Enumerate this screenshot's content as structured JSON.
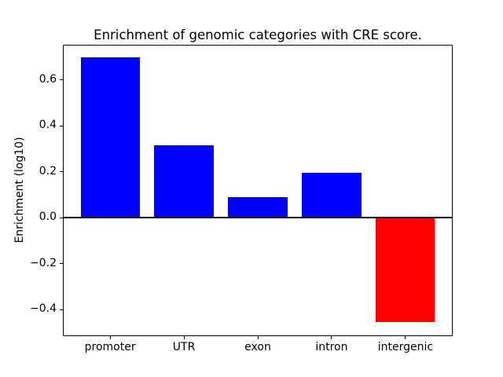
{
  "chart_data": {
    "type": "bar",
    "title": "Enrichment of genomic categories with CRE score.",
    "xlabel": "",
    "ylabel": "Enrichment (log10)",
    "categories": [
      "promoter",
      "UTR",
      "exon",
      "intron",
      "intergenic"
    ],
    "values": [
      0.697,
      0.315,
      0.088,
      0.194,
      -0.454
    ],
    "bar_colors": [
      "#0000ff",
      "#0000ff",
      "#0000ff",
      "#0000ff",
      "#ff0000"
    ],
    "positive_color": "#0000ff",
    "negative_color": "#ff0000",
    "y_ticks": [
      0.6,
      0.4,
      0.2,
      0.0,
      -0.2,
      -0.4
    ],
    "y_tick_labels": [
      "0.6",
      "0.4",
      "0.2",
      "0.0",
      "−0.2",
      "−0.4"
    ],
    "ylim": [
      -0.516,
      0.753
    ],
    "xlim": [
      -0.64,
      4.64
    ],
    "bar_width": 0.8,
    "zero_line_value": 0.0,
    "grid": false,
    "legend": false,
    "background_color": "#ffffff",
    "axis_color": "#000000",
    "text_color": "#000000"
  }
}
